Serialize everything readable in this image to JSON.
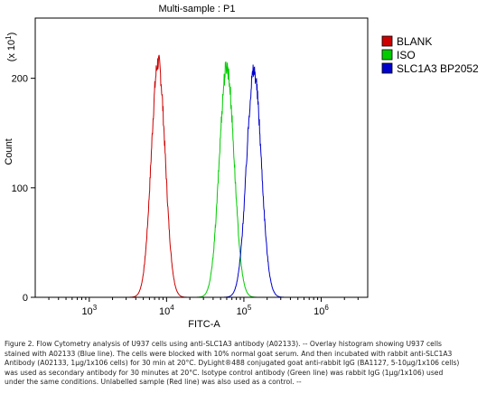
{
  "chart_data": {
    "type": "line",
    "title": "Multi-sample : P1",
    "xlabel": "FITC-A",
    "ylabel": "Count",
    "y_multiplier": "(x 10",
    "y_multiplier_exp": "1",
    "y_multiplier_close": ")",
    "x_scale": "log",
    "xlim": [
      200,
      4000000
    ],
    "ylim": [
      0,
      255
    ],
    "x_ticks": [
      {
        "value": 1000,
        "base": "10",
        "exp": "3"
      },
      {
        "value": 10000,
        "base": "10",
        "exp": "4"
      },
      {
        "value": 100000,
        "base": "10",
        "exp": "5"
      },
      {
        "value": 1000000,
        "base": "10",
        "exp": "6"
      }
    ],
    "y_ticks": [
      {
        "value": 0,
        "label": "0"
      },
      {
        "value": 100,
        "label": "100"
      },
      {
        "value": 200,
        "label": "200"
      }
    ],
    "grid": false,
    "legend_position": "right",
    "series": [
      {
        "name": "BLANK",
        "color": "#cc0000",
        "peak_x": 7800,
        "peak_y": 217,
        "width_decades": 0.09
      },
      {
        "name": "ISO",
        "color": "#00cc00",
        "peak_x": 60000,
        "peak_y": 213,
        "width_decades": 0.095
      },
      {
        "name": "SLC1A3 BP2052",
        "color": "#0000cc",
        "peak_x": 135000,
        "peak_y": 209,
        "width_decades": 0.095
      }
    ]
  },
  "caption": {
    "lines": [
      "Figure 2. Flow Cytometry analysis of U937 cells using anti-SLC1A3 antibody (A02133).  -- Overlay histogram showing U937 cells",
      "stained with A02133 (Blue line). The cells were blocked with 10% normal goat serum.  And then incubated with rabbit anti-SLC1A3",
      "Antibody (A02133, 1µg/1x106 cells) for 30 min at 20°C. DyLight®488 conjugated goat anti-rabbit IgG (BA1127, 5-10µg/1x106 cells)",
      "was used as secondary antibody for 30 minutes at 20°C. Isotype control antibody (Green line) was rabbit IgG (1µg/1x106) used",
      "under the same conditions. Unlabelled sample (Red line) was also used as a control. --"
    ]
  }
}
